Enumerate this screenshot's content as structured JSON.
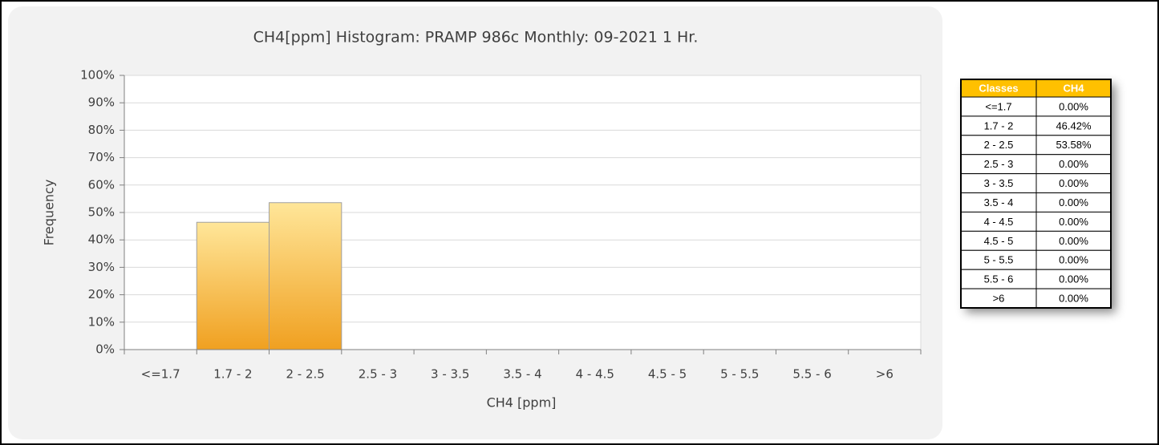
{
  "chart_data": {
    "type": "bar",
    "title": "CH4[ppm] Histogram: PRAMP 986c  Monthly: 09-2021 1 Hr.",
    "x_label": "CH4 [ppm]",
    "y_label": "Frequency",
    "categories": [
      "<=1.7",
      "1.7 - 2",
      "2 - 2.5",
      "2.5 - 3",
      "3 - 3.5",
      "3.5 - 4",
      "4 - 4.5",
      "4.5 - 5",
      "5 - 5.5",
      "5.5 - 6",
      ">6"
    ],
    "values": [
      0,
      46.42,
      53.58,
      0,
      0,
      0,
      0,
      0,
      0,
      0,
      0
    ],
    "color": "#f0a020",
    "ylim": [
      0,
      100
    ],
    "yticks": [
      {
        "value": 0,
        "label": "0%"
      },
      {
        "value": 10,
        "label": "10%"
      },
      {
        "value": 20,
        "label": "20%"
      },
      {
        "value": 30,
        "label": "30%"
      },
      {
        "value": 40,
        "label": "40%"
      },
      {
        "value": 50,
        "label": "50%"
      },
      {
        "value": 60,
        "label": "60%"
      },
      {
        "value": 70,
        "label": "70%"
      },
      {
        "value": 80,
        "label": "80%"
      },
      {
        "value": 90,
        "label": "90%"
      },
      {
        "value": 100,
        "label": "100%"
      }
    ],
    "grid": true
  },
  "table": {
    "header": [
      "Classes",
      "CH4"
    ],
    "rows": [
      [
        "<=1.7",
        "0.00%"
      ],
      [
        "1.7 - 2",
        "46.42%"
      ],
      [
        "2 - 2.5",
        "53.58%"
      ],
      [
        "2.5 - 3",
        "0.00%"
      ],
      [
        "3 - 3.5",
        "0.00%"
      ],
      [
        "3.5 - 4",
        "0.00%"
      ],
      [
        "4 - 4.5",
        "0.00%"
      ],
      [
        "4.5 - 5",
        "0.00%"
      ],
      [
        "5 - 5.5",
        "0.00%"
      ],
      [
        "5.5 - 6",
        "0.00%"
      ],
      [
        ">6",
        "0.00%"
      ]
    ]
  }
}
